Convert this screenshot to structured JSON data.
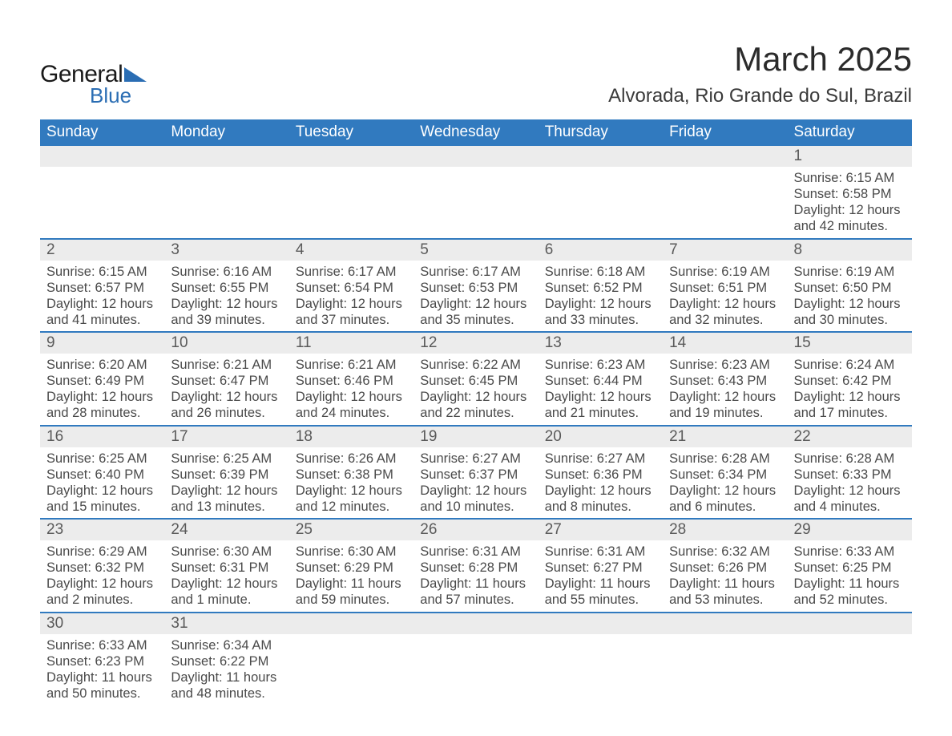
{
  "brand": {
    "general": "General",
    "blue": "Blue"
  },
  "title": "March 2025",
  "location": "Alvorada, Rio Grande do Sul, Brazil",
  "colors": {
    "header_bg": "#317abf",
    "header_text": "#ffffff",
    "daynum_bg": "#ececec",
    "text": "#4a4a4a",
    "rule": "#317abf"
  },
  "dow": [
    "Sunday",
    "Monday",
    "Tuesday",
    "Wednesday",
    "Thursday",
    "Friday",
    "Saturday"
  ],
  "weeks": [
    [
      null,
      null,
      null,
      null,
      null,
      null,
      {
        "n": "1",
        "sr": "6:15 AM",
        "ss": "6:58 PM",
        "dl1": "12 hours",
        "dl2": "and 42 minutes."
      }
    ],
    [
      {
        "n": "2",
        "sr": "6:15 AM",
        "ss": "6:57 PM",
        "dl1": "12 hours",
        "dl2": "and 41 minutes."
      },
      {
        "n": "3",
        "sr": "6:16 AM",
        "ss": "6:55 PM",
        "dl1": "12 hours",
        "dl2": "and 39 minutes."
      },
      {
        "n": "4",
        "sr": "6:17 AM",
        "ss": "6:54 PM",
        "dl1": "12 hours",
        "dl2": "and 37 minutes."
      },
      {
        "n": "5",
        "sr": "6:17 AM",
        "ss": "6:53 PM",
        "dl1": "12 hours",
        "dl2": "and 35 minutes."
      },
      {
        "n": "6",
        "sr": "6:18 AM",
        "ss": "6:52 PM",
        "dl1": "12 hours",
        "dl2": "and 33 minutes."
      },
      {
        "n": "7",
        "sr": "6:19 AM",
        "ss": "6:51 PM",
        "dl1": "12 hours",
        "dl2": "and 32 minutes."
      },
      {
        "n": "8",
        "sr": "6:19 AM",
        "ss": "6:50 PM",
        "dl1": "12 hours",
        "dl2": "and 30 minutes."
      }
    ],
    [
      {
        "n": "9",
        "sr": "6:20 AM",
        "ss": "6:49 PM",
        "dl1": "12 hours",
        "dl2": "and 28 minutes."
      },
      {
        "n": "10",
        "sr": "6:21 AM",
        "ss": "6:47 PM",
        "dl1": "12 hours",
        "dl2": "and 26 minutes."
      },
      {
        "n": "11",
        "sr": "6:21 AM",
        "ss": "6:46 PM",
        "dl1": "12 hours",
        "dl2": "and 24 minutes."
      },
      {
        "n": "12",
        "sr": "6:22 AM",
        "ss": "6:45 PM",
        "dl1": "12 hours",
        "dl2": "and 22 minutes."
      },
      {
        "n": "13",
        "sr": "6:23 AM",
        "ss": "6:44 PM",
        "dl1": "12 hours",
        "dl2": "and 21 minutes."
      },
      {
        "n": "14",
        "sr": "6:23 AM",
        "ss": "6:43 PM",
        "dl1": "12 hours",
        "dl2": "and 19 minutes."
      },
      {
        "n": "15",
        "sr": "6:24 AM",
        "ss": "6:42 PM",
        "dl1": "12 hours",
        "dl2": "and 17 minutes."
      }
    ],
    [
      {
        "n": "16",
        "sr": "6:25 AM",
        "ss": "6:40 PM",
        "dl1": "12 hours",
        "dl2": "and 15 minutes."
      },
      {
        "n": "17",
        "sr": "6:25 AM",
        "ss": "6:39 PM",
        "dl1": "12 hours",
        "dl2": "and 13 minutes."
      },
      {
        "n": "18",
        "sr": "6:26 AM",
        "ss": "6:38 PM",
        "dl1": "12 hours",
        "dl2": "and 12 minutes."
      },
      {
        "n": "19",
        "sr": "6:27 AM",
        "ss": "6:37 PM",
        "dl1": "12 hours",
        "dl2": "and 10 minutes."
      },
      {
        "n": "20",
        "sr": "6:27 AM",
        "ss": "6:36 PM",
        "dl1": "12 hours",
        "dl2": "and 8 minutes."
      },
      {
        "n": "21",
        "sr": "6:28 AM",
        "ss": "6:34 PM",
        "dl1": "12 hours",
        "dl2": "and 6 minutes."
      },
      {
        "n": "22",
        "sr": "6:28 AM",
        "ss": "6:33 PM",
        "dl1": "12 hours",
        "dl2": "and 4 minutes."
      }
    ],
    [
      {
        "n": "23",
        "sr": "6:29 AM",
        "ss": "6:32 PM",
        "dl1": "12 hours",
        "dl2": "and 2 minutes."
      },
      {
        "n": "24",
        "sr": "6:30 AM",
        "ss": "6:31 PM",
        "dl1": "12 hours",
        "dl2": "and 1 minute."
      },
      {
        "n": "25",
        "sr": "6:30 AM",
        "ss": "6:29 PM",
        "dl1": "11 hours",
        "dl2": "and 59 minutes."
      },
      {
        "n": "26",
        "sr": "6:31 AM",
        "ss": "6:28 PM",
        "dl1": "11 hours",
        "dl2": "and 57 minutes."
      },
      {
        "n": "27",
        "sr": "6:31 AM",
        "ss": "6:27 PM",
        "dl1": "11 hours",
        "dl2": "and 55 minutes."
      },
      {
        "n": "28",
        "sr": "6:32 AM",
        "ss": "6:26 PM",
        "dl1": "11 hours",
        "dl2": "and 53 minutes."
      },
      {
        "n": "29",
        "sr": "6:33 AM",
        "ss": "6:25 PM",
        "dl1": "11 hours",
        "dl2": "and 52 minutes."
      }
    ],
    [
      {
        "n": "30",
        "sr": "6:33 AM",
        "ss": "6:23 PM",
        "dl1": "11 hours",
        "dl2": "and 50 minutes."
      },
      {
        "n": "31",
        "sr": "6:34 AM",
        "ss": "6:22 PM",
        "dl1": "11 hours",
        "dl2": "and 48 minutes."
      },
      null,
      null,
      null,
      null,
      null
    ]
  ],
  "labels": {
    "sunrise": "Sunrise: ",
    "sunset": "Sunset: ",
    "daylight": "Daylight: "
  }
}
